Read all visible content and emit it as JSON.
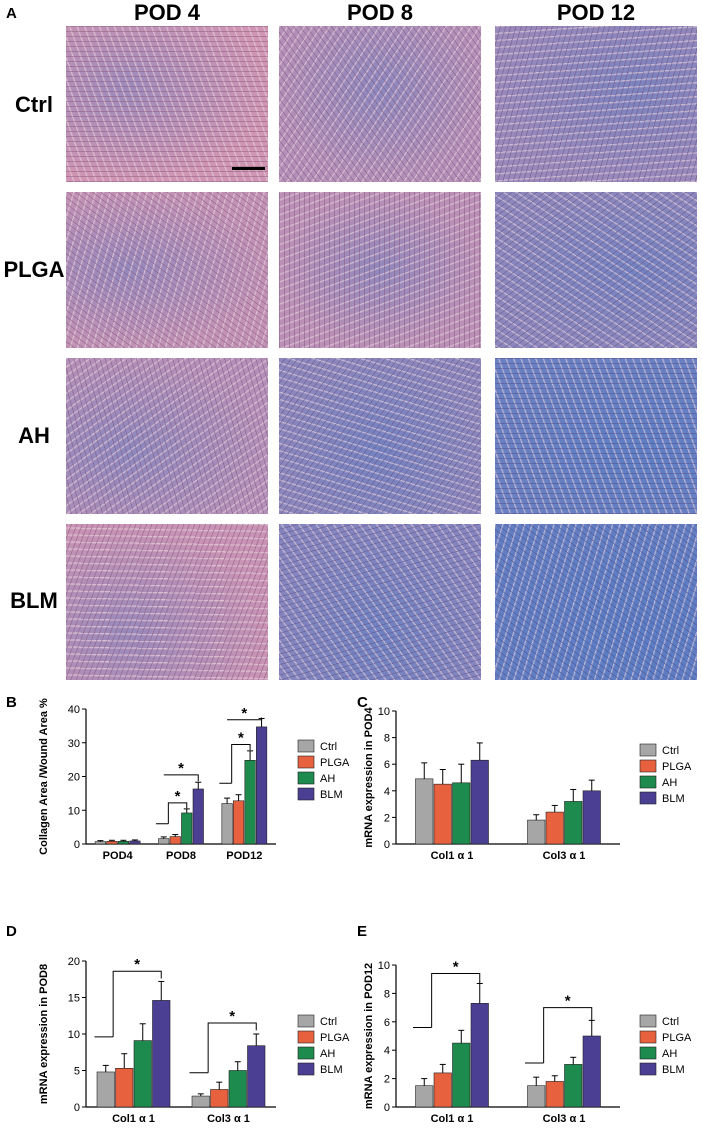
{
  "panels": {
    "a": "A",
    "b": "B",
    "c": "C",
    "d": "D",
    "e": "E"
  },
  "micrograph_grid": {
    "columns": [
      "POD 4",
      "POD 8",
      "POD 12"
    ],
    "rows": [
      "Ctrl",
      "PLGA",
      "AH",
      "BLM"
    ],
    "blue_staining_level": [
      [
        0.05,
        0.25,
        0.45
      ],
      [
        0.15,
        0.2,
        0.55
      ],
      [
        0.25,
        0.55,
        0.8
      ],
      [
        0.1,
        0.6,
        0.85
      ]
    ]
  },
  "colors": {
    "Ctrl": "#a6a6a6",
    "PLGA": "#e8613f",
    "AH": "#1d8a4e",
    "BLM": "#4b3f93"
  },
  "chart_data": [
    {
      "panel": "B",
      "type": "bar",
      "ylabel": "Collagen Area /Wound Area %",
      "ylim": [
        0,
        40
      ],
      "yticks": [
        "0",
        "10",
        "20",
        "30",
        "40"
      ],
      "categories": [
        "POD4",
        "POD8",
        "POD12"
      ],
      "series": [
        {
          "name": "Ctrl",
          "values": [
            0.7,
            1.6,
            12.0
          ],
          "errors": [
            0.3,
            0.5,
            1.6
          ]
        },
        {
          "name": "PLGA",
          "values": [
            0.8,
            2.2,
            12.8
          ],
          "errors": [
            0.3,
            0.6,
            1.8
          ]
        },
        {
          "name": "AH",
          "values": [
            0.8,
            9.2,
            24.8
          ],
          "errors": [
            0.3,
            1.2,
            2.8
          ]
        },
        {
          "name": "BLM",
          "values": [
            0.9,
            16.3,
            34.7
          ],
          "errors": [
            0.3,
            2.0,
            2.5
          ]
        }
      ],
      "significance": [
        "*",
        "*",
        "*",
        "*"
      ],
      "legend": "right"
    },
    {
      "panel": "C",
      "type": "bar",
      "ylabel": "mRNA expression in POD4",
      "ylim": [
        0,
        10
      ],
      "yticks": [
        "0",
        "2",
        "4",
        "6",
        "8",
        "10"
      ],
      "categories": [
        "Col1 α 1",
        "Col3 α 1"
      ],
      "series": [
        {
          "name": "Ctrl",
          "values": [
            4.9,
            1.8
          ],
          "errors": [
            1.2,
            0.4
          ]
        },
        {
          "name": "PLGA",
          "values": [
            4.5,
            2.4
          ],
          "errors": [
            1.1,
            0.5
          ]
        },
        {
          "name": "AH",
          "values": [
            4.6,
            3.2
          ],
          "errors": [
            1.4,
            0.9
          ]
        },
        {
          "name": "BLM",
          "values": [
            6.3,
            4.0
          ],
          "errors": [
            1.3,
            0.8
          ]
        }
      ],
      "significance": [],
      "legend": "right"
    },
    {
      "panel": "D",
      "type": "bar",
      "ylabel": "mRNA expression in POD8",
      "ylim": [
        0,
        20
      ],
      "yticks": [
        "0",
        "5",
        "10",
        "15",
        "20"
      ],
      "categories": [
        "Col1 α 1",
        "Col3 α 1"
      ],
      "series": [
        {
          "name": "Ctrl",
          "values": [
            4.8,
            1.5
          ],
          "errors": [
            0.9,
            0.3
          ]
        },
        {
          "name": "PLGA",
          "values": [
            5.3,
            2.4
          ],
          "errors": [
            2.0,
            1.0
          ]
        },
        {
          "name": "AH",
          "values": [
            9.1,
            5.0
          ],
          "errors": [
            2.3,
            1.2
          ]
        },
        {
          "name": "BLM",
          "values": [
            14.6,
            8.4
          ],
          "errors": [
            2.6,
            1.6
          ]
        }
      ],
      "significance": [
        "*",
        "*"
      ],
      "legend": "right"
    },
    {
      "panel": "E",
      "type": "bar",
      "ylabel": "mRNA expression in POD12",
      "ylim": [
        0,
        10
      ],
      "yticks": [
        "0",
        "2",
        "4",
        "6",
        "8",
        "10"
      ],
      "categories": [
        "Col1 α 1",
        "Col3 α 1"
      ],
      "series": [
        {
          "name": "Ctrl",
          "values": [
            1.5,
            1.5
          ],
          "errors": [
            0.5,
            0.6
          ]
        },
        {
          "name": "PLGA",
          "values": [
            2.4,
            1.8
          ],
          "errors": [
            0.6,
            0.4
          ]
        },
        {
          "name": "AH",
          "values": [
            4.5,
            3.0
          ],
          "errors": [
            0.9,
            0.5
          ]
        },
        {
          "name": "BLM",
          "values": [
            7.3,
            5.0
          ],
          "errors": [
            1.4,
            1.1
          ]
        }
      ],
      "significance": [
        "*",
        "*"
      ],
      "legend": "right"
    }
  ]
}
